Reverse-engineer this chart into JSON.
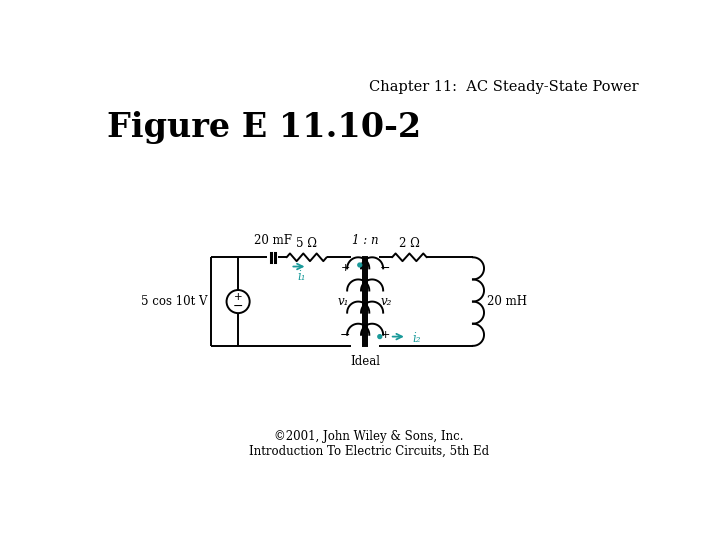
{
  "title": "Chapter 11:  AC Steady-State Power",
  "figure_label": "Figure E 11.10-2",
  "footer_line1": "©2001, John Wiley & Sons, Inc.",
  "footer_line2": "Introduction To Electric Circuits, 5th Ed",
  "bg_color": "#ffffff",
  "circuit_color": "#000000",
  "cyan_color": "#1a9a9a",
  "title_fontsize": 10.5,
  "figure_label_fontsize": 24,
  "footer_fontsize": 8.5,
  "label_20mF": "20 mF",
  "label_5ohm": "5 Ω",
  "label_2ohm": "2 Ω",
  "label_1n": "1 : n",
  "label_20mH": "20 mH",
  "label_source": "5 cos 10t V",
  "label_ideal": "Ideal",
  "label_v1": "v₁",
  "label_v2": "v₂",
  "label_i1": "i₁",
  "label_i2": "i₂"
}
